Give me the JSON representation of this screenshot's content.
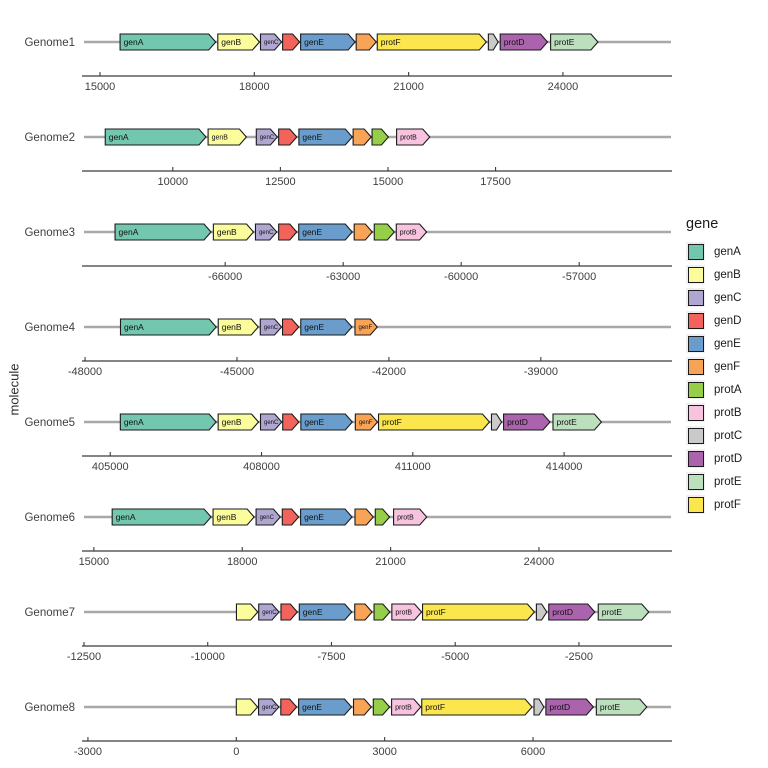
{
  "y_axis_title": "molecule",
  "legend": {
    "title": "gene",
    "items": [
      {
        "label": "genA",
        "color": "#72C7AE"
      },
      {
        "label": "genB",
        "color": "#FBFC9C"
      },
      {
        "label": "genC",
        "color": "#AFA7D1"
      },
      {
        "label": "genD",
        "color": "#F2635C"
      },
      {
        "label": "genE",
        "color": "#6A9DCB"
      },
      {
        "label": "genF",
        "color": "#F9A357"
      },
      {
        "label": "protA",
        "color": "#97CE49"
      },
      {
        "label": "protB",
        "color": "#F7C3DE"
      },
      {
        "label": "protC",
        "color": "#CACACA"
      },
      {
        "label": "protD",
        "color": "#AB63AE"
      },
      {
        "label": "protE",
        "color": "#BCE0BD"
      },
      {
        "label": "protF",
        "color": "#FBE64E"
      }
    ]
  },
  "style": {
    "axis_color": "#3c3c3c",
    "tick_label_color": "#404040",
    "genome_label_color": "#404040",
    "molecule_line_color": "#A8A8A8",
    "arrow_outline_color": "#1A1A1A",
    "background": "#FFFFFF"
  },
  "chart_data": {
    "type": "gene-arrow-map",
    "ylabel": "molecule",
    "legend_title": "gene",
    "x_scales": "free per facet",
    "facets": [
      {
        "molecule": "Genome1",
        "xlim": [
          14650,
          26120
        ],
        "ticks": [
          15000,
          18000,
          21000,
          24000
        ],
        "genes": [
          {
            "gene": "genA",
            "start": 15390,
            "end": 17250,
            "labeled": true
          },
          {
            "gene": "genB",
            "start": 17290,
            "end": 18100,
            "labeled": true
          },
          {
            "gene": "genC",
            "start": 18120,
            "end": 18530,
            "labeled": true
          },
          {
            "gene": "genD",
            "start": 18550,
            "end": 18880,
            "labeled": false
          },
          {
            "gene": "genE",
            "start": 18900,
            "end": 19960,
            "labeled": true
          },
          {
            "gene": "genF",
            "start": 19980,
            "end": 20370,
            "labeled": false
          },
          {
            "gene": "protF",
            "start": 20390,
            "end": 22510,
            "labeled": true
          },
          {
            "gene": "protC",
            "start": 22550,
            "end": 22740,
            "labeled": false
          },
          {
            "gene": "protD",
            "start": 22780,
            "end": 23700,
            "labeled": true
          },
          {
            "gene": "protE",
            "start": 23760,
            "end": 24680,
            "labeled": true
          }
        ]
      },
      {
        "molecule": "Genome2",
        "xlim": [
          7890,
          21600
        ],
        "ticks": [
          10000,
          12500,
          15000,
          17500
        ],
        "genes": [
          {
            "gene": "genA",
            "start": 8430,
            "end": 10770,
            "labeled": true
          },
          {
            "gene": "genB",
            "start": 10820,
            "end": 11710,
            "labeled": true
          },
          {
            "gene": "genC",
            "start": 11940,
            "end": 12430,
            "labeled": true
          },
          {
            "gene": "genD",
            "start": 12460,
            "end": 12880,
            "labeled": false
          },
          {
            "gene": "genE",
            "start": 12930,
            "end": 14170,
            "labeled": true
          },
          {
            "gene": "genF",
            "start": 14190,
            "end": 14610,
            "labeled": false
          },
          {
            "gene": "protA",
            "start": 14630,
            "end": 15010,
            "labeled": false
          },
          {
            "gene": "protB",
            "start": 15200,
            "end": 15970,
            "labeled": true
          }
        ]
      },
      {
        "molecule": "Genome3",
        "xlim": [
          -69640,
          -54640
        ],
        "ticks": [
          -66000,
          -63000,
          -60000,
          -57000
        ],
        "genes": [
          {
            "gene": "genA",
            "start": -68800,
            "end": -66360,
            "labeled": true
          },
          {
            "gene": "genB",
            "start": -66300,
            "end": -65280,
            "labeled": true
          },
          {
            "gene": "genC",
            "start": -65230,
            "end": -64690,
            "labeled": true
          },
          {
            "gene": "genD",
            "start": -64640,
            "end": -64180,
            "labeled": false
          },
          {
            "gene": "genE",
            "start": -64130,
            "end": -62770,
            "labeled": true
          },
          {
            "gene": "genF",
            "start": -62720,
            "end": -62260,
            "labeled": false
          },
          {
            "gene": "protA",
            "start": -62210,
            "end": -61700,
            "labeled": false
          },
          {
            "gene": "protB",
            "start": -61650,
            "end": -60880,
            "labeled": true
          }
        ]
      },
      {
        "molecule": "Genome4",
        "xlim": [
          -48060,
          -36410
        ],
        "ticks": [
          -48000,
          -45000,
          -42000,
          -39000
        ],
        "genes": [
          {
            "gene": "genA",
            "start": -47300,
            "end": -45410,
            "labeled": true
          },
          {
            "gene": "genB",
            "start": -45370,
            "end": -44580,
            "labeled": true
          },
          {
            "gene": "genC",
            "start": -44540,
            "end": -44120,
            "labeled": true
          },
          {
            "gene": "genD",
            "start": -44100,
            "end": -43780,
            "labeled": false
          },
          {
            "gene": "genE",
            "start": -43740,
            "end": -42730,
            "labeled": true
          },
          {
            "gene": "genF",
            "start": -42670,
            "end": -42230,
            "labeled": true
          }
        ]
      },
      {
        "molecule": "Genome5",
        "xlim": [
          404440,
          416140
        ],
        "ticks": [
          405000,
          408000,
          411000,
          414000
        ],
        "genes": [
          {
            "gene": "genA",
            "start": 405200,
            "end": 407100,
            "labeled": true
          },
          {
            "gene": "genB",
            "start": 407140,
            "end": 407940,
            "labeled": true
          },
          {
            "gene": "genC",
            "start": 407980,
            "end": 408400,
            "labeled": true
          },
          {
            "gene": "genD",
            "start": 408420,
            "end": 408740,
            "labeled": false
          },
          {
            "gene": "genE",
            "start": 408780,
            "end": 409800,
            "labeled": true
          },
          {
            "gene": "genF",
            "start": 409860,
            "end": 410300,
            "labeled": true
          },
          {
            "gene": "protF",
            "start": 410320,
            "end": 412520,
            "labeled": true
          },
          {
            "gene": "protC",
            "start": 412560,
            "end": 412760,
            "labeled": false
          },
          {
            "gene": "protD",
            "start": 412800,
            "end": 413720,
            "labeled": true
          },
          {
            "gene": "protE",
            "start": 413780,
            "end": 414740,
            "labeled": true
          }
        ]
      },
      {
        "molecule": "Genome6",
        "xlim": [
          14760,
          26690
        ],
        "ticks": [
          15000,
          18000,
          21000,
          24000
        ],
        "genes": [
          {
            "gene": "genA",
            "start": 15370,
            "end": 17370,
            "labeled": true
          },
          {
            "gene": "genB",
            "start": 17410,
            "end": 18240,
            "labeled": true
          },
          {
            "gene": "genC",
            "start": 18280,
            "end": 18770,
            "labeled": true
          },
          {
            "gene": "genD",
            "start": 18810,
            "end": 19140,
            "labeled": false
          },
          {
            "gene": "genE",
            "start": 19180,
            "end": 20220,
            "labeled": true
          },
          {
            "gene": "genF",
            "start": 20280,
            "end": 20650,
            "labeled": false
          },
          {
            "gene": "protA",
            "start": 20690,
            "end": 20980,
            "labeled": false
          },
          {
            "gene": "protB",
            "start": 21060,
            "end": 21730,
            "labeled": true
          }
        ]
      },
      {
        "molecule": "Genome7",
        "xlim": [
          -12540,
          -620
        ],
        "ticks": [
          -12500,
          -10000,
          -7500,
          -5000,
          -2500
        ],
        "genes": [
          {
            "gene": "genB",
            "start": -9420,
            "end": -8990,
            "labeled": false
          },
          {
            "gene": "genC",
            "start": -8970,
            "end": -8560,
            "labeled": true
          },
          {
            "gene": "genD",
            "start": -8520,
            "end": -8190,
            "labeled": false
          },
          {
            "gene": "genE",
            "start": -8150,
            "end": -7090,
            "labeled": true
          },
          {
            "gene": "genF",
            "start": -7030,
            "end": -6680,
            "labeled": false
          },
          {
            "gene": "protA",
            "start": -6640,
            "end": -6320,
            "labeled": false
          },
          {
            "gene": "protB",
            "start": -6280,
            "end": -5680,
            "labeled": true
          },
          {
            "gene": "protF",
            "start": -5660,
            "end": -3400,
            "labeled": true
          },
          {
            "gene": "protC",
            "start": -3360,
            "end": -3150,
            "labeled": false
          },
          {
            "gene": "protD",
            "start": -3110,
            "end": -2180,
            "labeled": true
          },
          {
            "gene": "protE",
            "start": -2110,
            "end": -1090,
            "labeled": true
          }
        ]
      },
      {
        "molecule": "Genome8",
        "xlim": [
          -3120,
          8810
        ],
        "ticks": [
          -3000,
          0,
          3000,
          6000
        ],
        "genes": [
          {
            "gene": "genB",
            "start": 0,
            "end": 430,
            "labeled": false
          },
          {
            "gene": "genC",
            "start": 450,
            "end": 860,
            "labeled": true
          },
          {
            "gene": "genD",
            "start": 900,
            "end": 1220,
            "labeled": false
          },
          {
            "gene": "genE",
            "start": 1260,
            "end": 2330,
            "labeled": true
          },
          {
            "gene": "genF",
            "start": 2370,
            "end": 2730,
            "labeled": false
          },
          {
            "gene": "protA",
            "start": 2770,
            "end": 3100,
            "labeled": false
          },
          {
            "gene": "protB",
            "start": 3140,
            "end": 3730,
            "labeled": true
          },
          {
            "gene": "protF",
            "start": 3750,
            "end": 5980,
            "labeled": true
          },
          {
            "gene": "protC",
            "start": 6020,
            "end": 6220,
            "labeled": false
          },
          {
            "gene": "protD",
            "start": 6260,
            "end": 7220,
            "labeled": true
          },
          {
            "gene": "protE",
            "start": 7280,
            "end": 8300,
            "labeled": true
          }
        ]
      }
    ]
  }
}
